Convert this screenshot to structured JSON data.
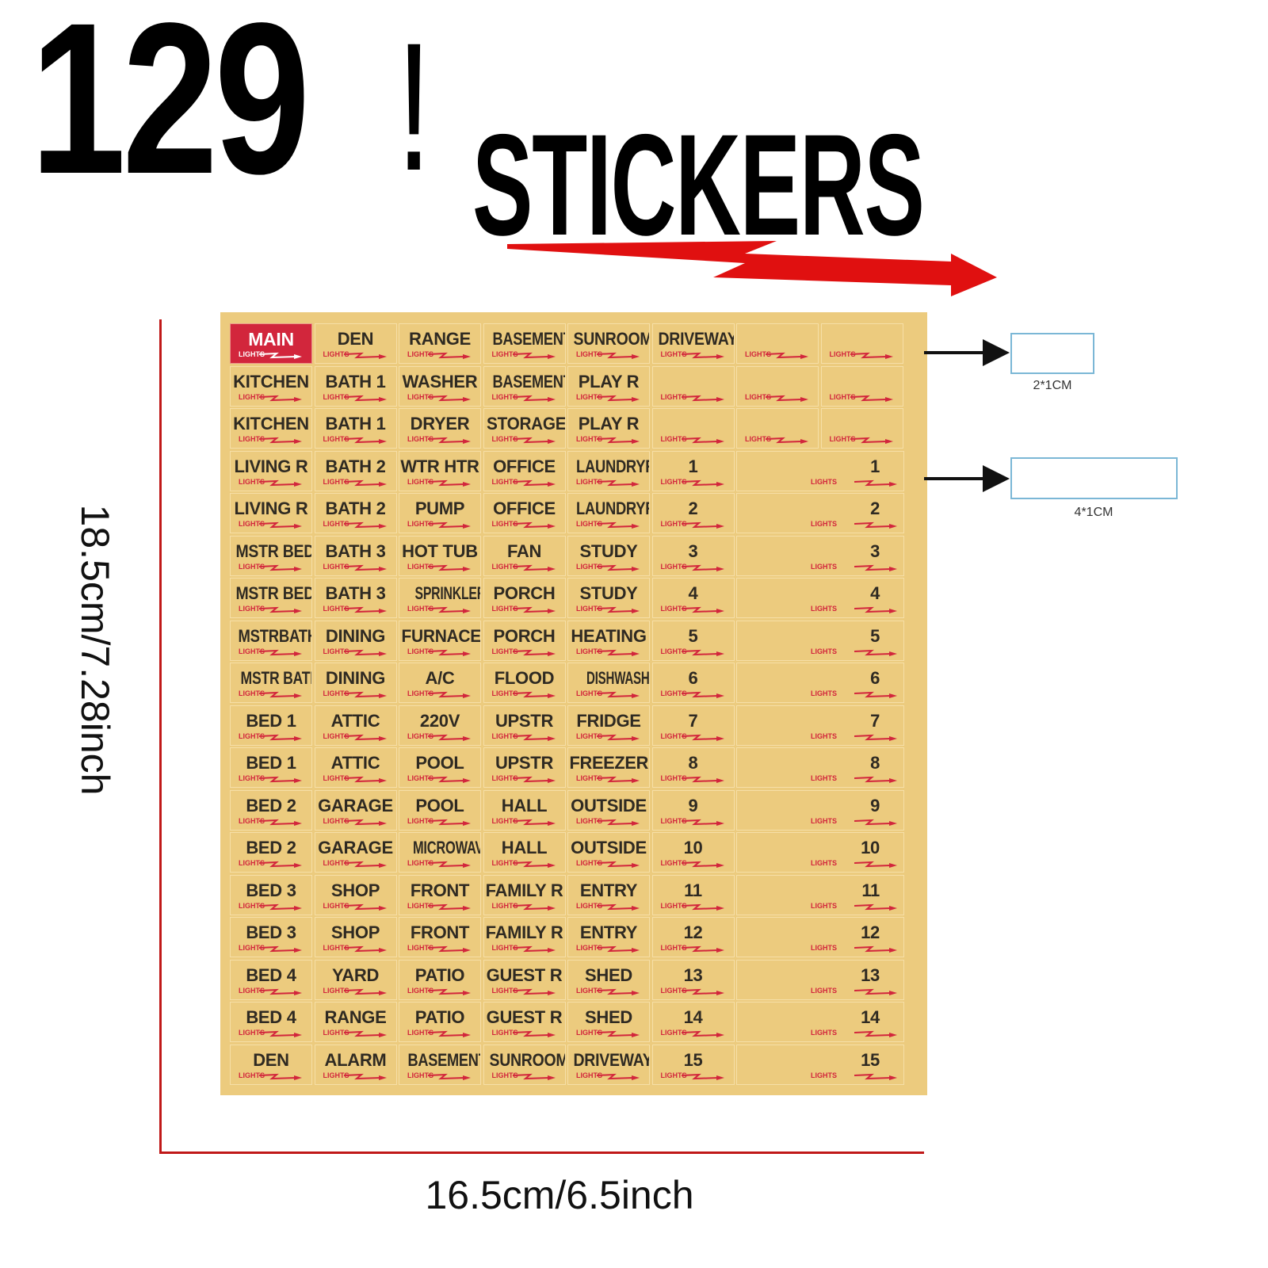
{
  "header": {
    "count": "129",
    "exclamation": "!",
    "word": "STICKERS"
  },
  "colors": {
    "sheet": "#eccb7e",
    "accent_red": "#d2263c",
    "dimension_line": "#c01818",
    "box_border": "#7bb7d6"
  },
  "sticker": {
    "lights_label": "LIGHTS",
    "main_label": "MAIN"
  },
  "rows": [
    [
      "MAIN",
      "DEN",
      "RANGE",
      "BASEMENT",
      "SUNROOM",
      "DRIVEWAY",
      "",
      ""
    ],
    [
      "KITCHEN",
      "BATH 1",
      "WASHER",
      "BASEMENT",
      "PLAY R",
      "",
      "",
      ""
    ],
    [
      "KITCHEN",
      "BATH 1",
      "DRYER",
      "STORAGE",
      "PLAY R",
      "",
      "",
      ""
    ],
    [
      "LIVING R",
      "BATH 2",
      "WTR HTR",
      "OFFICE",
      "LAUNDRYR",
      "1",
      "1"
    ],
    [
      "LIVING R",
      "BATH 2",
      "PUMP",
      "OFFICE",
      "LAUNDRYR",
      "2",
      "2"
    ],
    [
      "MSTR BED",
      "BATH 3",
      "HOT TUB",
      "FAN",
      "STUDY",
      "3",
      "3"
    ],
    [
      "MSTR BED",
      "BATH 3",
      "SPRINKLERS",
      "PORCH",
      "STUDY",
      "4",
      "4"
    ],
    [
      "MSTRBATH",
      "DINING",
      "FURNACE",
      "PORCH",
      "HEATING",
      "5",
      "5"
    ],
    [
      "MSTR BATH",
      "DINING",
      "A/C",
      "FLOOD",
      "DISHWASHER",
      "6",
      "6"
    ],
    [
      "BED 1",
      "ATTIC",
      "220V",
      "UPSTR",
      "FRIDGE",
      "7",
      "7"
    ],
    [
      "BED 1",
      "ATTIC",
      "POOL",
      "UPSTR",
      "FREEZER",
      "8",
      "8"
    ],
    [
      "BED 2",
      "GARAGE",
      "POOL",
      "HALL",
      "OUTSIDE",
      "9",
      "9"
    ],
    [
      "BED 2",
      "GARAGE",
      "MICROWAVE",
      "HALL",
      "OUTSIDE",
      "10",
      "10"
    ],
    [
      "BED 3",
      "SHOP",
      "FRONT",
      "FAMILY R",
      "ENTRY",
      "11",
      "11"
    ],
    [
      "BED 3",
      "SHOP",
      "FRONT",
      "FAMILY R",
      "ENTRY",
      "12",
      "12"
    ],
    [
      "BED 4",
      "YARD",
      "PATIO",
      "GUEST R",
      "SHED",
      "13",
      "13"
    ],
    [
      "BED 4",
      "RANGE",
      "PATIO",
      "GUEST R",
      "SHED",
      "14",
      "14"
    ],
    [
      "DEN",
      "ALARM",
      "BASEMENT",
      "SUNROOM",
      "DRIVEWAY",
      "15",
      "15"
    ]
  ],
  "dimensions": {
    "height": "18.5cm/7.28inch",
    "width": "16.5cm/6.5inch"
  },
  "sizes": {
    "small": "2*1CM",
    "large": "4*1CM"
  }
}
